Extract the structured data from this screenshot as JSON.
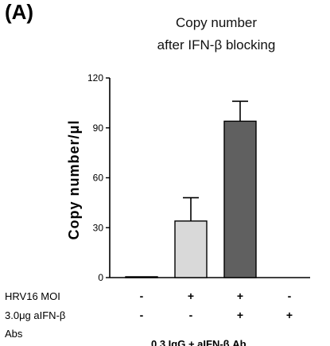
{
  "panel_label": "(A)",
  "chart_data": {
    "type": "bar",
    "title": "Copy number\nafter IFN-β blocking",
    "ylabel": "Copy number/μl",
    "ylim": [
      0,
      120
    ],
    "yticks": [
      "0",
      "30",
      "60",
      "90",
      "120"
    ],
    "values": [
      0.5,
      34,
      94,
      0
    ],
    "errors": [
      0.3,
      14,
      12,
      0
    ],
    "colors": [
      "#ffffff",
      "#d9d9d9",
      "#606060",
      "#ffffff"
    ],
    "row_labels": [
      {
        "label": "HRV16  MOI",
        "marks": [
          "-",
          "+",
          "+",
          "-"
        ]
      },
      {
        "label": "3.0μg aIFN-β",
        "marks": [
          "-",
          "-",
          "+",
          "+"
        ]
      },
      {
        "label": "Abs",
        "marks": []
      }
    ],
    "footer_text": "0.3 IgG + aIFN-β Ab"
  }
}
